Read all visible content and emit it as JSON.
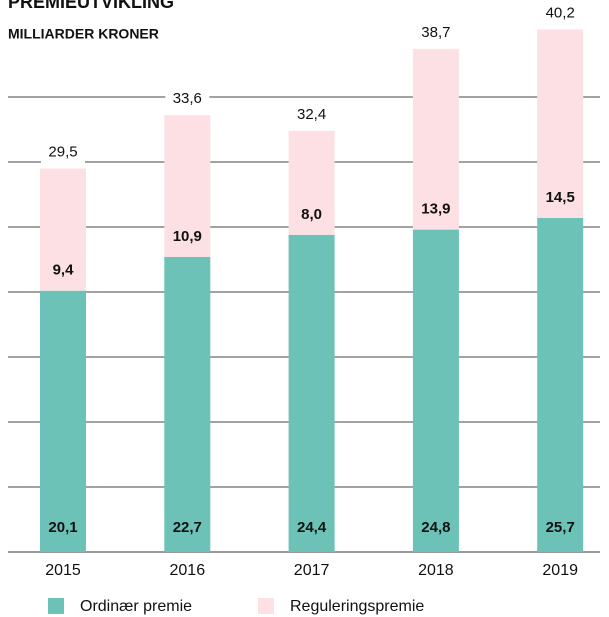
{
  "chart_data": {
    "type": "stacked_bar",
    "title": "PREMIEUTVIKLING",
    "subtitle": "MILLIARDER KRONER",
    "categories": [
      "2015",
      "2016",
      "2017",
      "2018",
      "2019"
    ],
    "series": [
      {
        "name": "Ordinær premie",
        "color": "#6cc2b6",
        "values": [
          20.1,
          22.7,
          24.4,
          24.8,
          25.7
        ],
        "value_labels": [
          "20,1",
          "22,7",
          "24,4",
          "24,8",
          "25,7"
        ]
      },
      {
        "name": "Reguleringspremie",
        "color": "#fde0e3",
        "values": [
          9.4,
          10.9,
          8.0,
          13.9,
          14.5
        ],
        "value_labels": [
          "9,4",
          "10,9",
          "8,0",
          "13,9",
          "14,5"
        ]
      }
    ],
    "totals": [
      29.5,
      33.6,
      32.4,
      38.7,
      40.2
    ],
    "total_labels": [
      "29,5",
      "33,6",
      "32,4",
      "38,7",
      "40,2"
    ],
    "ylim": [
      0,
      42
    ],
    "yticks": [
      0,
      5,
      10,
      15,
      20,
      25,
      30,
      35
    ],
    "grid": true
  }
}
